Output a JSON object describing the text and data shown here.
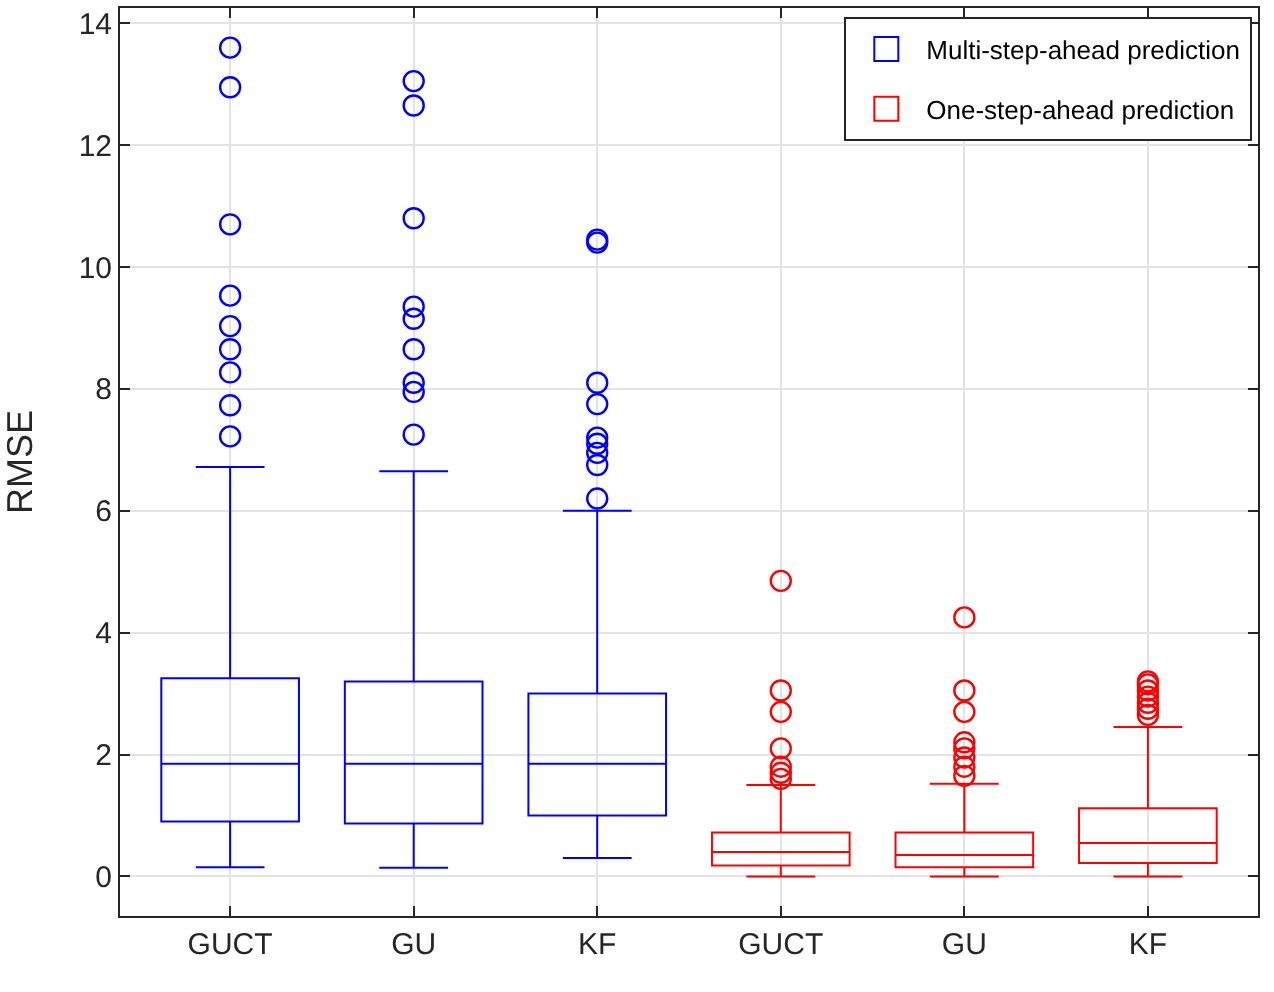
{
  "chart_data": {
    "type": "box",
    "ylabel": "RMSE",
    "categories": [
      "GUCT",
      "GU",
      "KF",
      "GUCT",
      "GU",
      "KF"
    ],
    "ylim": [
      -0.65,
      14.25
    ],
    "yticks": [
      0,
      2,
      4,
      6,
      8,
      10,
      12,
      14
    ],
    "grid": true,
    "legend": "top right",
    "marker": "circle",
    "series": [
      {
        "name": "Multi-step-ahead prediction",
        "color": "#0000ff",
        "boxes": [
          {
            "low": 0.15,
            "q1": 0.9,
            "median": 1.85,
            "q3": 3.25,
            "high": 6.72,
            "outliers": [
              7.22,
              7.73,
              8.27,
              8.65,
              9.03,
              9.53,
              10.7,
              12.95,
              13.6
            ]
          },
          {
            "low": 0.14,
            "q1": 0.87,
            "median": 1.85,
            "q3": 3.2,
            "high": 6.65,
            "outliers": [
              7.25,
              7.95,
              8.1,
              8.65,
              9.15,
              9.35,
              10.8,
              12.65,
              13.05
            ]
          },
          {
            "low": 0.3,
            "q1": 1.0,
            "median": 1.85,
            "q3": 3.0,
            "high": 6.0,
            "outliers": [
              6.2,
              6.75,
              6.95,
              7.1,
              7.2,
              7.75,
              8.1,
              10.4,
              10.45
            ]
          },
          null,
          null,
          null
        ]
      },
      {
        "name": "One-step-ahead prediction",
        "color": "#ff0000",
        "boxes": [
          null,
          null,
          null,
          {
            "low": 0,
            "q1": 0.18,
            "median": 0.4,
            "q3": 0.72,
            "high": 1.5,
            "outliers": [
              1.6,
              1.7,
              1.8,
              2.1,
              2.7,
              3.05,
              4.85
            ]
          },
          {
            "low": 0,
            "q1": 0.15,
            "median": 0.35,
            "q3": 0.72,
            "high": 1.52,
            "outliers": [
              1.65,
              1.8,
              1.95,
              2.1,
              2.2,
              2.7,
              3.05,
              4.25
            ]
          },
          {
            "low": 0,
            "q1": 0.22,
            "median": 0.55,
            "q3": 1.12,
            "high": 2.45,
            "outliers": [
              2.65,
              2.75,
              2.85,
              2.95,
              3.05,
              3.15,
              3.2
            ]
          }
        ]
      }
    ]
  }
}
